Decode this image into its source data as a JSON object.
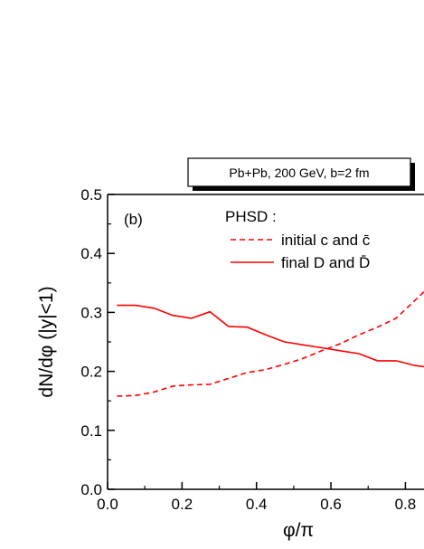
{
  "chart_data": {
    "type": "line",
    "info_box": "Pb+Pb, 200 GeV, b=2 fm",
    "panel_label": "(b)",
    "legend_title": "PHSD :",
    "xlabel": "φ/π",
    "ylabel": "dN/dφ (|y|<1)",
    "xlim": [
      0.0,
      0.85
    ],
    "ylim": [
      0.0,
      0.5
    ],
    "x_ticks": [
      "0.0",
      "0.2",
      "0.4",
      "0.6",
      "0.8"
    ],
    "y_ticks": [
      "0.0",
      "0.1",
      "0.2",
      "0.3",
      "0.4",
      "0.5"
    ],
    "line_color": "#ff0000",
    "series": [
      {
        "name": "initial c and c̄",
        "style": "dashed",
        "x": [
          0.025,
          0.075,
          0.125,
          0.175,
          0.225,
          0.275,
          0.325,
          0.375,
          0.425,
          0.475,
          0.525,
          0.575,
          0.625,
          0.675,
          0.725,
          0.775,
          0.825,
          0.85
        ],
        "y": [
          0.158,
          0.159,
          0.165,
          0.175,
          0.177,
          0.178,
          0.188,
          0.198,
          0.203,
          0.212,
          0.222,
          0.235,
          0.247,
          0.262,
          0.275,
          0.29,
          0.32,
          0.335
        ]
      },
      {
        "name": "final D and D̄",
        "style": "solid",
        "x": [
          0.025,
          0.075,
          0.125,
          0.175,
          0.225,
          0.275,
          0.325,
          0.375,
          0.425,
          0.475,
          0.525,
          0.575,
          0.625,
          0.675,
          0.725,
          0.775,
          0.825,
          0.85
        ],
        "y": [
          0.312,
          0.312,
          0.307,
          0.295,
          0.29,
          0.301,
          0.276,
          0.275,
          0.262,
          0.25,
          0.245,
          0.24,
          0.235,
          0.23,
          0.218,
          0.218,
          0.21,
          0.208
        ]
      }
    ]
  }
}
